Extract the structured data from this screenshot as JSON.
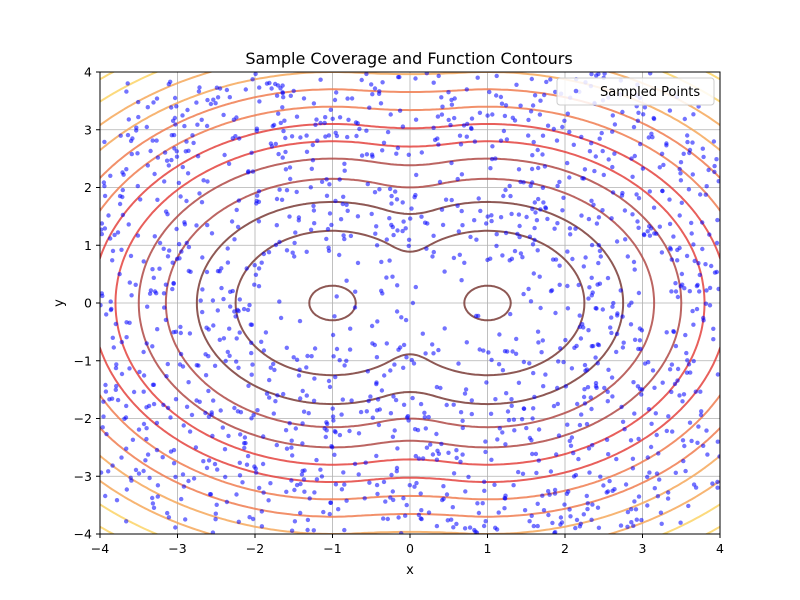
{
  "chart_data": {
    "type": "scatter",
    "title": "Sample Coverage and Function Contours",
    "xlabel": "x",
    "ylabel": "y",
    "xlim": [
      -4,
      4
    ],
    "ylim": [
      -4,
      4
    ],
    "xticks": [
      -4,
      -3,
      -2,
      -1,
      0,
      1,
      2,
      3,
      4
    ],
    "yticks": [
      -4,
      -3,
      -2,
      -1,
      0,
      1,
      2,
      3,
      4
    ],
    "x_tick_labels": [
      "−4",
      "−3",
      "−2",
      "−1",
      "0",
      "1",
      "2",
      "3",
      "4"
    ],
    "y_tick_labels": [
      "−4",
      "−3",
      "−2",
      "−1",
      "0",
      "1",
      "2",
      "3",
      "4"
    ],
    "grid": true,
    "legend": {
      "position": "top-right",
      "entries": [
        "Sampled Points"
      ]
    },
    "series": [
      {
        "name": "Sampled Points",
        "kind": "scatter",
        "color": "#0000ff",
        "opacity": 0.55,
        "count": 1500,
        "distribution": "dense inside the ring 0.9 < r < 4, sparse near the two minima at (-1, 0) and (1, 0)"
      }
    ],
    "contours": {
      "minima": [
        [
          -1,
          0
        ],
        [
          1,
          0
        ]
      ],
      "levels": [
        0.3,
        1.25,
        1.75,
        2.15,
        2.5,
        2.8,
        3.1,
        3.4,
        3.7,
        4.0,
        4.3,
        4.6,
        4.9,
        5.2
      ],
      "colormap": "hot",
      "colors_low_to_high": [
        "#7a3b36",
        "#b04a46",
        "#e4433e",
        "#f07c50",
        "#f6a85a",
        "#fbd466",
        "#ffff6e"
      ]
    }
  }
}
